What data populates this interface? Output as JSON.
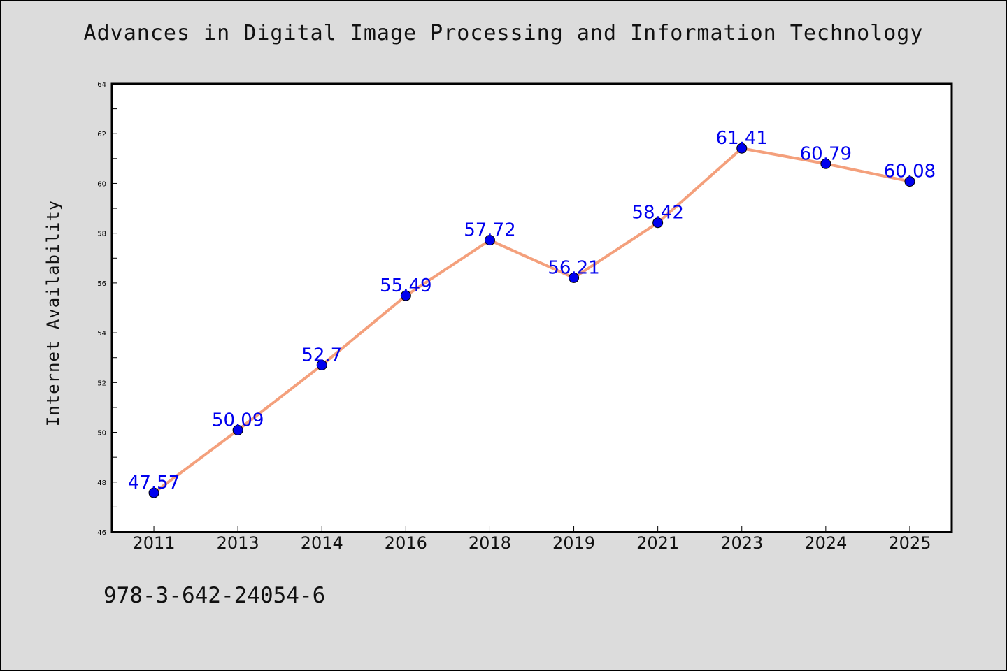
{
  "chart_data": {
    "type": "line",
    "title": "Advances in Digital Image Processing and Information Technology",
    "xlabel": "",
    "ylabel": "Internet Availability",
    "categories": [
      "2011",
      "2013",
      "2014",
      "2016",
      "2018",
      "2019",
      "2021",
      "2023",
      "2024",
      "2025"
    ],
    "values": [
      47.57,
      50.09,
      52.7,
      55.49,
      57.72,
      56.21,
      58.42,
      61.41,
      60.79,
      60.08
    ],
    "data_labels": [
      "47.57",
      "50.09",
      "52.7",
      "55.49",
      "57.72",
      "56.21",
      "58.42",
      "61.41",
      "60.79",
      "60.08"
    ],
    "ylim": [
      46,
      64
    ],
    "yticks": [
      46,
      48,
      50,
      52,
      54,
      56,
      58,
      60,
      62,
      64
    ],
    "grid": false,
    "colors": {
      "line": "#f4a07c",
      "marker": "#0000ee",
      "label": "#0000ee",
      "background": "#dcdcdc",
      "plot_background": "#ffffff"
    }
  },
  "footer": {
    "isbn": "978-3-642-24054-6"
  }
}
